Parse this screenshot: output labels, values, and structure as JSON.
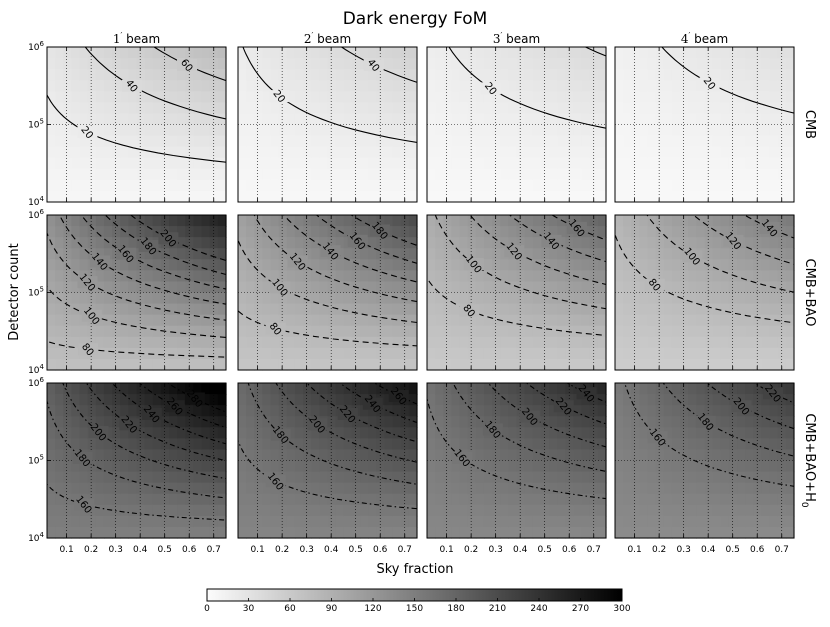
{
  "chart_data": {
    "type": "heatmap",
    "title": "Dark energy FoM",
    "xlabel": "Sky fraction",
    "ylabel": "Detector count",
    "x_ticks": [
      "0.1",
      "0.2",
      "0.3",
      "0.4",
      "0.5",
      "0.6",
      "0.7"
    ],
    "xlim": [
      0.02,
      0.75
    ],
    "y_ticks": [
      "10^4",
      "10^5",
      "10^6"
    ],
    "ylim": [
      10000,
      1000000
    ],
    "y_scale": "log",
    "grid": true,
    "columns": [
      {
        "label_main": "1",
        "label_rest": " beam"
      },
      {
        "label_main": "2",
        "label_rest": " beam"
      },
      {
        "label_main": "3",
        "label_rest": " beam"
      },
      {
        "label_main": "4",
        "label_rest": " beam"
      }
    ],
    "rows": [
      "CMB",
      "CMB+BAO",
      "CMB+BAO+H0"
    ],
    "colorbar": {
      "ticks": [
        "0",
        "30",
        "60",
        "90",
        "120",
        "150",
        "180",
        "210",
        "240",
        "270",
        "300"
      ],
      "range": [
        0,
        300
      ],
      "colormap": "white-to-black"
    },
    "contour_labels": [
      [
        [
          "20",
          "40",
          "60"
        ],
        [
          "20",
          "40"
        ],
        [
          "20",
          "40"
        ],
        [
          "20",
          "40"
        ]
      ],
      [
        [
          "80",
          "100",
          "120",
          "140",
          "160",
          "180",
          "200"
        ],
        [
          "80",
          "100",
          "120",
          "140",
          "160",
          "180"
        ],
        [
          "80",
          "100",
          "120",
          "140",
          "160"
        ],
        [
          "80",
          "100",
          "120",
          "140"
        ]
      ],
      [
        [
          "160",
          "180",
          "200",
          "220",
          "240",
          "260",
          "280"
        ],
        [
          "160",
          "180",
          "200",
          "220",
          "240",
          "260"
        ],
        [
          "160",
          "180",
          "200",
          "220",
          "240"
        ],
        [
          "160",
          "180",
          "200",
          "220"
        ]
      ]
    ]
  }
}
